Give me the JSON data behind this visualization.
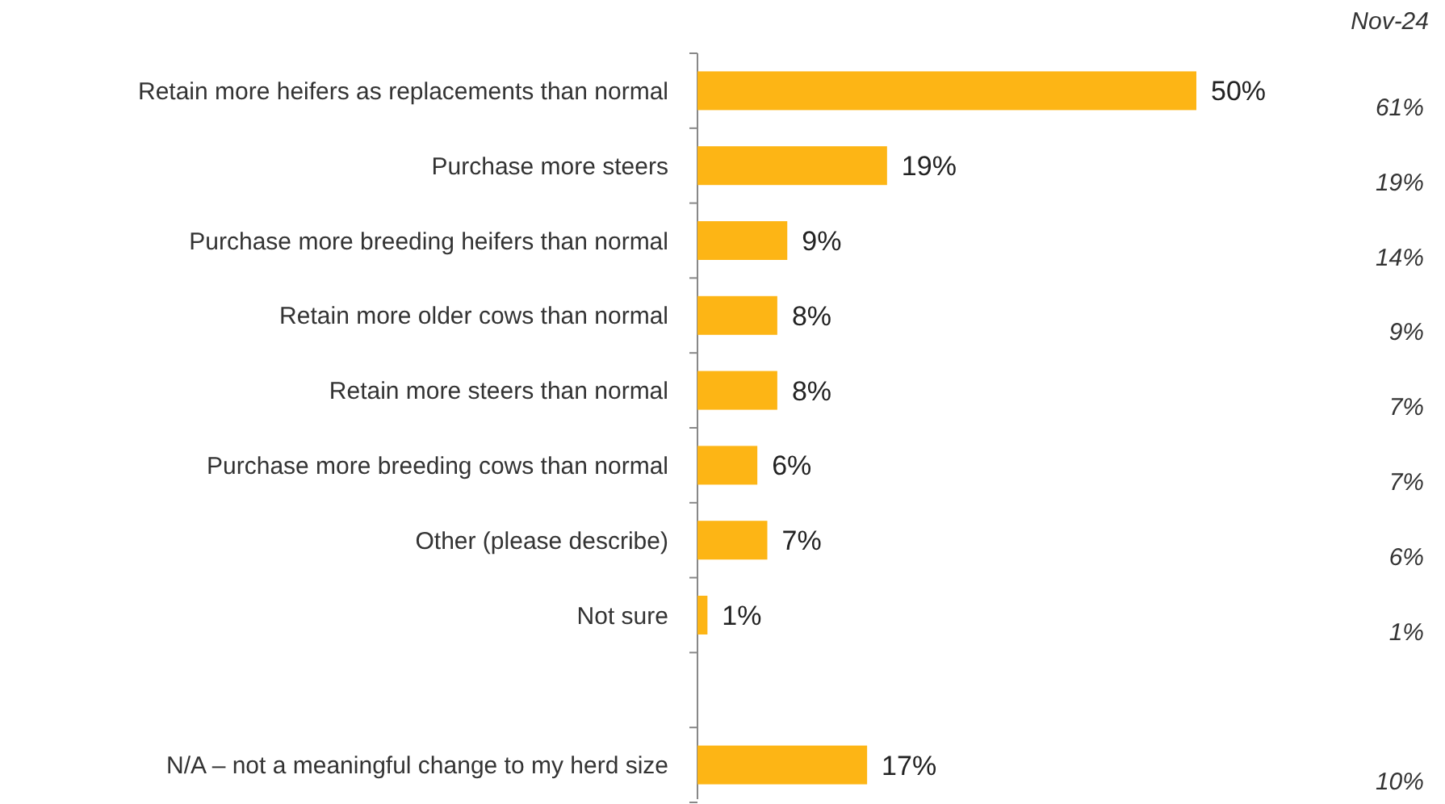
{
  "chart_data": {
    "type": "bar",
    "orientation": "horizontal",
    "categories": [
      "Retain more heifers as replacements than normal",
      "Purchase more steers",
      "Purchase more breeding heifers than normal",
      "Retain more older cows than normal",
      "Retain more steers than normal",
      "Purchase more breeding cows than normal",
      "Other (please describe)",
      "Not sure",
      null,
      "N/A – not a meaningful change to my herd size"
    ],
    "values": [
      50,
      19,
      9,
      8,
      8,
      6,
      7,
      1,
      null,
      17
    ],
    "color": "#fdb515",
    "value_labels": [
      "50%",
      "19%",
      "9%",
      "8%",
      "8%",
      "6%",
      "7%",
      "1%",
      null,
      "17%"
    ],
    "annotations": [
      "Nov-24",
      "61%",
      "19%",
      "14%",
      "9%",
      "7%",
      "7%",
      "6%",
      "1%",
      "10%"
    ]
  }
}
